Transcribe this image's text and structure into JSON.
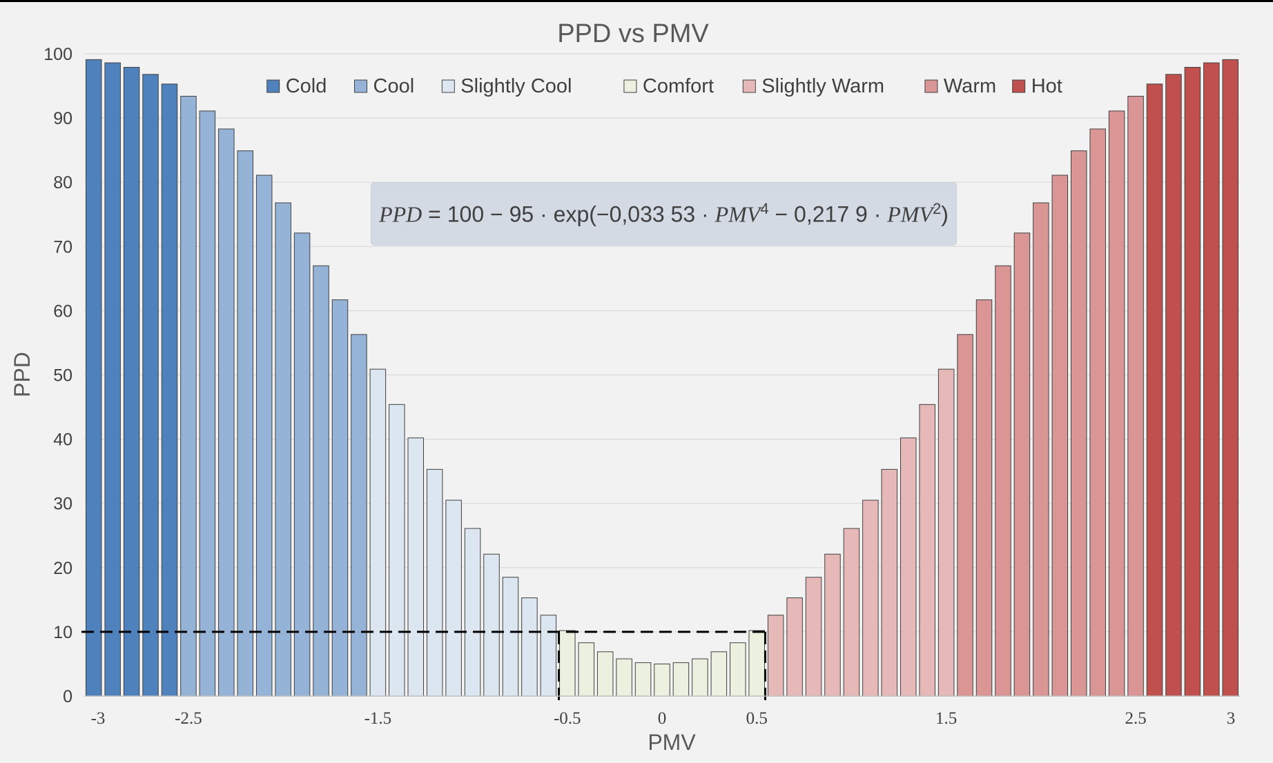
{
  "chart_data": {
    "type": "bar",
    "title": "PPD vs PMV",
    "xlabel": "PMV",
    "ylabel": "PPD",
    "ylim": [
      0,
      100
    ],
    "xlim": [
      -3,
      3
    ],
    "yticks": [
      "0",
      "10",
      "20",
      "30",
      "40",
      "50",
      "60",
      "70",
      "80",
      "90",
      "100"
    ],
    "xticks": [
      {
        "value": -3,
        "label": "-3"
      },
      {
        "value": -2.5,
        "label": "-2.5"
      },
      {
        "value": -1.5,
        "label": "-1.5"
      },
      {
        "value": -0.5,
        "label": "-0.5"
      },
      {
        "value": 0,
        "label": "0"
      },
      {
        "value": 0.5,
        "label": "0.5"
      },
      {
        "value": 1.5,
        "label": "1.5"
      },
      {
        "value": 2.5,
        "label": "2.5"
      },
      {
        "value": 3,
        "label": "3"
      }
    ],
    "grid": "horizontal",
    "legend_position": "top",
    "formula": "PPD = 100 − 95 · exp(−0,033 53 · PMV⁴ − 0,217 9 · PMV²)",
    "formula_parts": {
      "lhs": "PPD",
      "rhs_a": "= 100 − 95 · exp(−0,033 53 ·",
      "var1": "PMV",
      "exp1": "4",
      "rhs_b": "− 0,217 9 ·",
      "var2": "PMV",
      "exp2": "2",
      "close": ")"
    },
    "threshold": {
      "ppd": 10,
      "pmv_range": [
        -0.5,
        0.5
      ]
    },
    "series": [
      {
        "name": "Cold",
        "color": "#4f81bd",
        "x": [
          -3.0,
          -2.9,
          -2.8,
          -2.7,
          -2.6
        ],
        "values": [
          99.1,
          98.6,
          97.9,
          96.8,
          95.3
        ]
      },
      {
        "name": "Cool",
        "color": "#95b3d7",
        "x": [
          -2.5,
          -2.4,
          -2.3,
          -2.2,
          -2.1,
          -2.0,
          -1.9,
          -1.8,
          -1.7,
          -1.6
        ],
        "values": [
          93.4,
          91.1,
          88.3,
          84.9,
          81.1,
          76.8,
          72.1,
          67.0,
          61.7,
          56.3
        ]
      },
      {
        "name": "Slightly Cool",
        "color": "#dce6f1",
        "x": [
          -1.5,
          -1.4,
          -1.3,
          -1.2,
          -1.1,
          -1.0,
          -0.9,
          -0.8,
          -0.7,
          -0.6
        ],
        "values": [
          50.9,
          45.4,
          40.2,
          35.3,
          30.5,
          26.1,
          22.1,
          18.5,
          15.3,
          12.6
        ]
      },
      {
        "name": "Comfort",
        "color": "#ebf1de",
        "x": [
          -0.5,
          -0.4,
          -0.3,
          -0.2,
          -0.1,
          0.0,
          0.1,
          0.2,
          0.3,
          0.4,
          0.5
        ],
        "values": [
          10.2,
          8.3,
          6.9,
          5.8,
          5.2,
          5.0,
          5.2,
          5.8,
          6.9,
          8.3,
          10.2
        ]
      },
      {
        "name": "Slightly Warm",
        "color": "#e6b9b8",
        "x": [
          0.6,
          0.7,
          0.8,
          0.9,
          1.0,
          1.1,
          1.2,
          1.3,
          1.4,
          1.5
        ],
        "values": [
          12.6,
          15.3,
          18.5,
          22.1,
          26.1,
          30.5,
          35.3,
          40.2,
          45.4,
          50.9
        ]
      },
      {
        "name": "Warm",
        "color": "#d99694",
        "x": [
          1.6,
          1.7,
          1.8,
          1.9,
          2.0,
          2.1,
          2.2,
          2.3,
          2.4,
          2.5
        ],
        "values": [
          56.3,
          61.7,
          67.0,
          72.1,
          76.8,
          81.1,
          84.9,
          88.3,
          91.1,
          93.4
        ]
      },
      {
        "name": "Hot",
        "color": "#c0504d",
        "x": [
          2.6,
          2.7,
          2.8,
          2.9,
          3.0
        ],
        "values": [
          95.3,
          96.8,
          97.9,
          98.6,
          99.1
        ]
      }
    ]
  }
}
